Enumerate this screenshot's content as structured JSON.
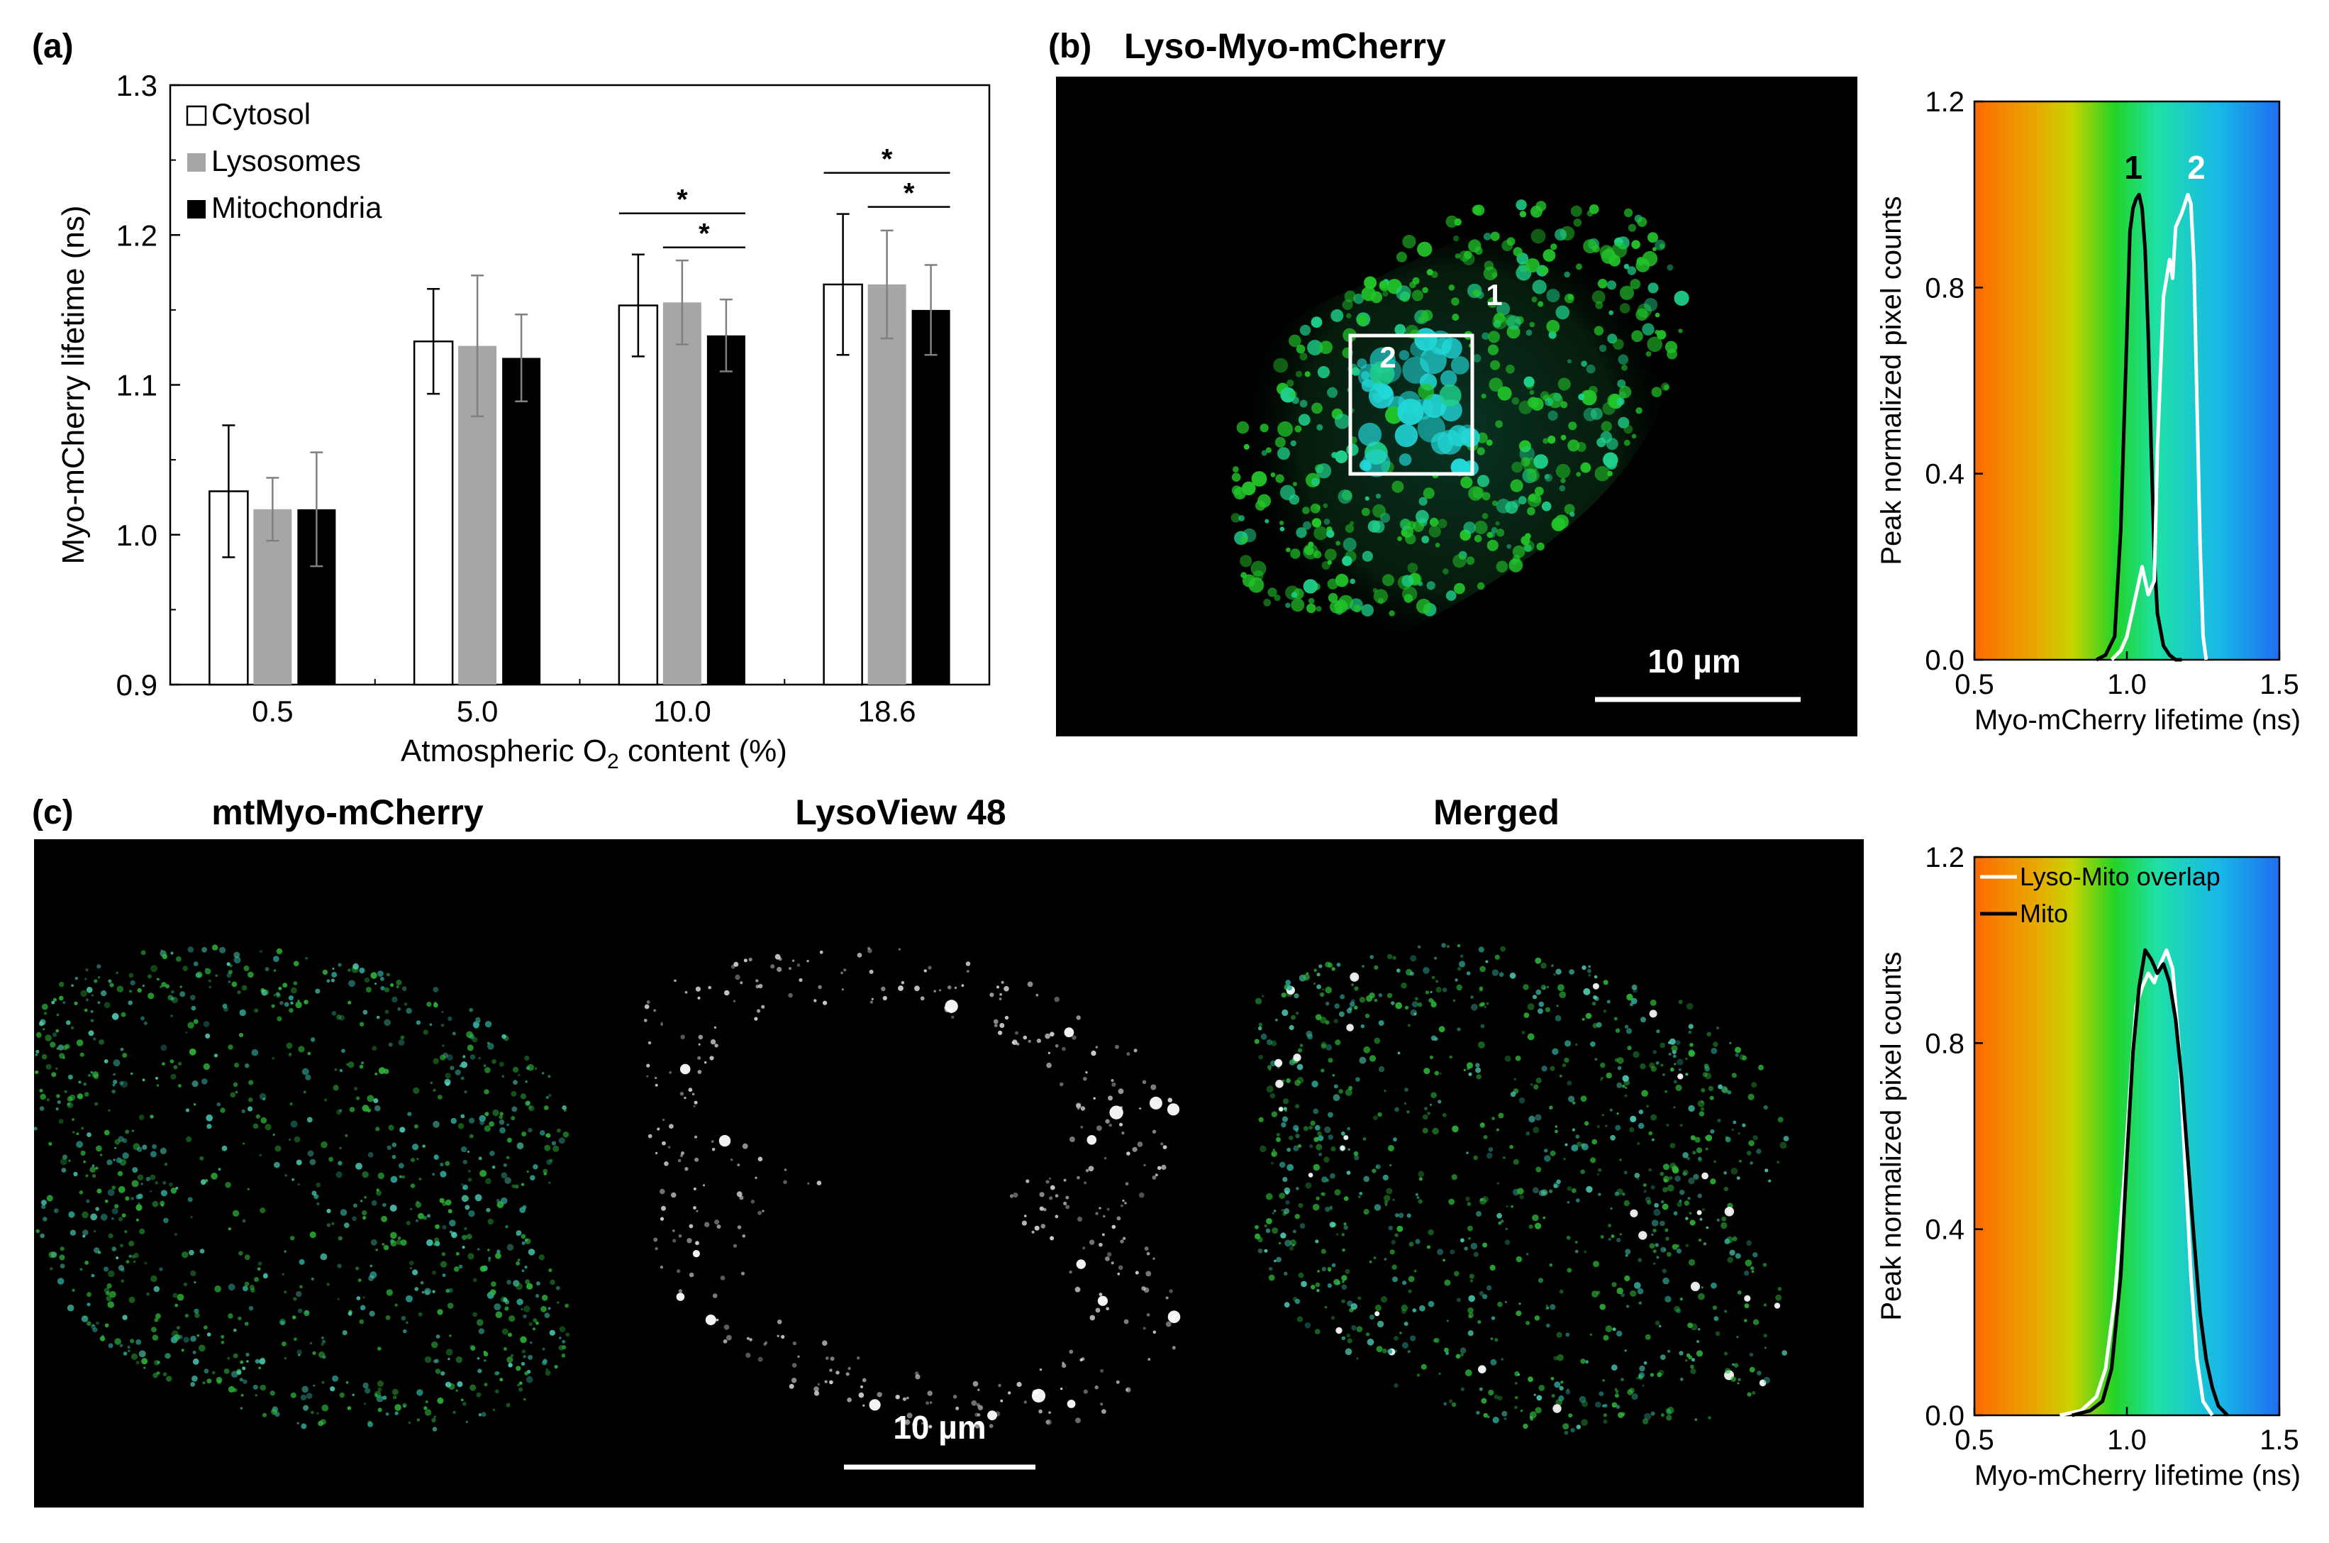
{
  "panels": {
    "a": {
      "letter": "(a)"
    },
    "b": {
      "letter": "(b)",
      "title": "Lyso-Myo-mCherry",
      "scalebar": "10 µm",
      "roi_labels": [
        "1",
        "2"
      ]
    },
    "c": {
      "letter": "(c)",
      "titles": [
        "mtMyo-mCherry",
        "LysoView 48",
        "Merged"
      ],
      "scalebar": "10 µm"
    }
  },
  "colors": {
    "cytosol": "#ffffff",
    "lysosomes": "#a6a6a6",
    "mitochondria": "#000000",
    "gradient": [
      "#ff6a00",
      "#e8a800",
      "#c8d400",
      "#22d426",
      "#1ee0a8",
      "#18b8e8",
      "#1e6ff0"
    ]
  },
  "chart_data": [
    {
      "type": "bar",
      "panel": "a",
      "ylabel": "Myo-mCherry lifetime (ns)",
      "xlabel_main": "Atmospheric O",
      "xlabel_sub": "2",
      "xlabel_tail": " content (%)",
      "categories": [
        "0.5",
        "5.0",
        "10.0",
        "18.6"
      ],
      "ylim": [
        0.9,
        1.3
      ],
      "yticks": [
        "0.9",
        "1.0",
        "1.1",
        "1.2",
        "1.3"
      ],
      "legend_position": "top-left",
      "series": [
        {
          "name": "Cytosol",
          "values": [
            1.029,
            1.129,
            1.153,
            1.167
          ],
          "errors": [
            0.044,
            0.035,
            0.034,
            0.047
          ]
        },
        {
          "name": "Lysosomes",
          "values": [
            1.017,
            1.126,
            1.155,
            1.167
          ],
          "errors": [
            0.021,
            0.047,
            0.028,
            0.036
          ]
        },
        {
          "name": "Mitochondria",
          "values": [
            1.017,
            1.118,
            1.133,
            1.15
          ],
          "errors": [
            0.038,
            0.029,
            0.024,
            0.03
          ]
        }
      ],
      "significance": [
        {
          "category": 2,
          "from": 0,
          "to": 2,
          "label": "*"
        },
        {
          "category": 2,
          "from": 1,
          "to": 2,
          "label": "*"
        },
        {
          "category": 3,
          "from": 0,
          "to": 2,
          "label": "*"
        },
        {
          "category": 3,
          "from": 1,
          "to": 2,
          "label": "*"
        }
      ]
    },
    {
      "type": "line",
      "panel": "b",
      "xlabel": "Myo-mCherry lifetime (ns)",
      "ylabel": "Peak normalized pixel counts",
      "xlim": [
        0.5,
        1.5
      ],
      "ylim": [
        0.0,
        1.2
      ],
      "xticks": [
        "0.5",
        "1.0",
        "1.5"
      ],
      "yticks": [
        "0.0",
        "0.4",
        "0.8",
        "1.2"
      ],
      "series": [
        {
          "name": "1",
          "color": "#000000",
          "x": [
            0.9,
            0.93,
            0.96,
            0.98,
            1.0,
            1.01,
            1.02,
            1.03,
            1.04,
            1.05,
            1.06,
            1.07,
            1.08,
            1.09,
            1.1,
            1.12,
            1.14,
            1.16,
            1.18
          ],
          "y": [
            0.0,
            0.01,
            0.05,
            0.28,
            0.7,
            0.92,
            0.97,
            0.99,
            1.0,
            0.97,
            0.88,
            0.7,
            0.45,
            0.22,
            0.1,
            0.03,
            0.01,
            0.0,
            0.0
          ]
        },
        {
          "name": "2",
          "color": "#ffffff",
          "x": [
            0.95,
            0.98,
            1.0,
            1.03,
            1.05,
            1.07,
            1.09,
            1.1,
            1.12,
            1.14,
            1.15,
            1.16,
            1.18,
            1.19,
            1.2,
            1.21,
            1.22,
            1.23,
            1.24,
            1.25,
            1.26
          ],
          "y": [
            0.0,
            0.02,
            0.05,
            0.14,
            0.2,
            0.14,
            0.17,
            0.45,
            0.78,
            0.86,
            0.82,
            0.93,
            0.96,
            0.98,
            1.0,
            0.98,
            0.85,
            0.55,
            0.25,
            0.05,
            0.0
          ]
        }
      ]
    },
    {
      "type": "line",
      "panel": "c",
      "xlabel": "Myo-mCherry lifetime (ns)",
      "ylabel": "Peak normalized pixel counts",
      "xlim": [
        0.5,
        1.5
      ],
      "ylim": [
        0.0,
        1.2
      ],
      "xticks": [
        "0.5",
        "1.0",
        "1.5"
      ],
      "yticks": [
        "0.0",
        "0.4",
        "0.8",
        "1.2"
      ],
      "legend_position": "top-left",
      "series": [
        {
          "name": "Lyso-Mito overlap",
          "color": "#ffffff",
          "x": [
            0.78,
            0.85,
            0.9,
            0.93,
            0.96,
            0.99,
            1.01,
            1.03,
            1.05,
            1.07,
            1.09,
            1.11,
            1.13,
            1.15,
            1.17,
            1.19,
            1.21,
            1.23,
            1.25,
            1.28
          ],
          "y": [
            0.0,
            0.01,
            0.04,
            0.1,
            0.25,
            0.5,
            0.7,
            0.88,
            0.92,
            0.95,
            0.93,
            0.97,
            1.0,
            0.96,
            0.8,
            0.55,
            0.3,
            0.12,
            0.03,
            0.0
          ]
        },
        {
          "name": "Mito",
          "color": "#000000",
          "x": [
            0.82,
            0.88,
            0.92,
            0.95,
            0.98,
            1.0,
            1.02,
            1.04,
            1.06,
            1.08,
            1.1,
            1.12,
            1.14,
            1.16,
            1.18,
            1.2,
            1.22,
            1.24,
            1.26,
            1.28,
            1.3,
            1.33
          ],
          "y": [
            0.0,
            0.01,
            0.03,
            0.1,
            0.3,
            0.55,
            0.78,
            0.92,
            1.0,
            0.98,
            0.95,
            0.97,
            0.93,
            0.85,
            0.72,
            0.55,
            0.38,
            0.22,
            0.12,
            0.06,
            0.02,
            0.0
          ]
        }
      ]
    }
  ]
}
